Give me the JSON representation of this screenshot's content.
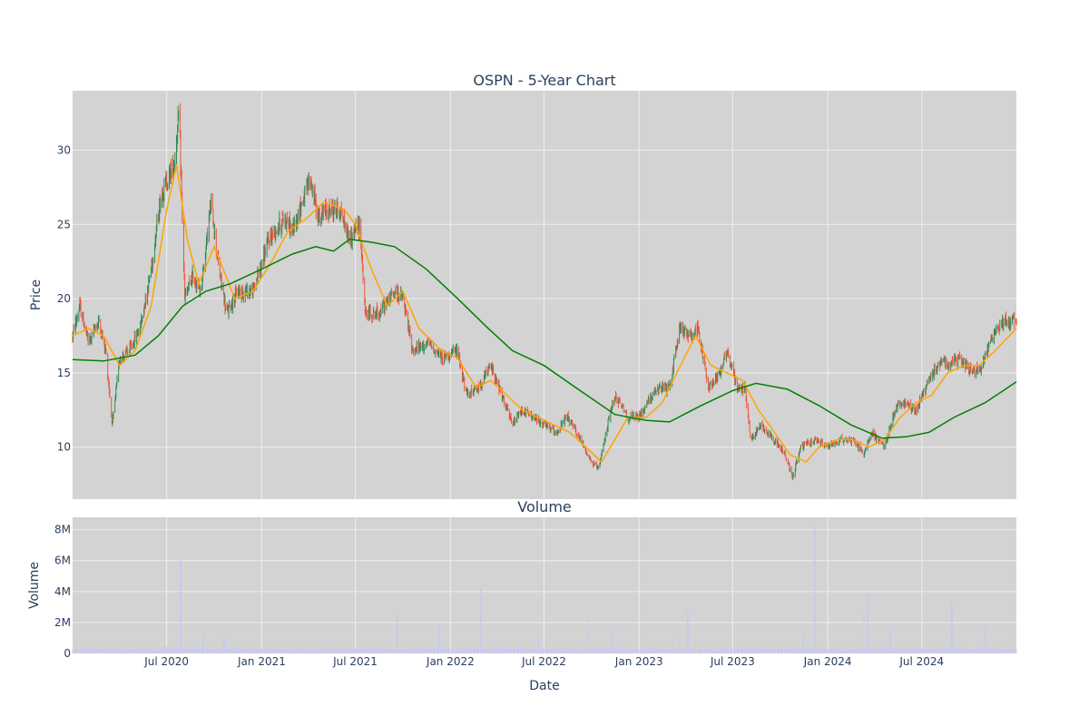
{
  "colors": {
    "plot_bg": "#d3d3d3",
    "grid": "#eeeeee",
    "text": "#2a3f5f",
    "increasing": "#2e8b57",
    "decreasing": "#ef553b",
    "ma_short": "#ffa500",
    "ma_long": "#008000",
    "volume": "#c8c8f0"
  },
  "chart_data": [
    {
      "type": "candlestick",
      "title": "OSPN - 5-Year Chart",
      "xlabel": "",
      "ylabel": "Price",
      "x_range": [
        "2020-01-01",
        "2024-12-31"
      ],
      "ylim": [
        6.5,
        34
      ],
      "y_ticks": [
        10,
        15,
        20,
        25,
        30
      ],
      "x_ticks": [
        {
          "date": "2020-07-01",
          "label": "Jul 2020"
        },
        {
          "date": "2021-01-01",
          "label": "Jan 2021"
        },
        {
          "date": "2021-07-01",
          "label": "Jul 2021"
        },
        {
          "date": "2022-01-01",
          "label": "Jan 2022"
        },
        {
          "date": "2022-07-01",
          "label": "Jul 2022"
        },
        {
          "date": "2023-01-01",
          "label": "Jan 2023"
        },
        {
          "date": "2023-07-01",
          "label": "Jul 2023"
        },
        {
          "date": "2024-01-01",
          "label": "Jan 2024"
        },
        {
          "date": "2024-07-01",
          "label": "Jul 2024"
        }
      ],
      "grid": true,
      "price_path": [
        [
          "2020-01-01",
          17.5
        ],
        [
          "2020-01-15",
          19.5
        ],
        [
          "2020-02-01",
          17.0
        ],
        [
          "2020-02-20",
          18.5
        ],
        [
          "2020-03-05",
          16.5
        ],
        [
          "2020-03-18",
          11.5
        ],
        [
          "2020-04-01",
          16.0
        ],
        [
          "2020-04-20",
          16.5
        ],
        [
          "2020-05-10",
          18.0
        ],
        [
          "2020-06-01",
          22.0
        ],
        [
          "2020-06-20",
          27.0
        ],
        [
          "2020-07-15",
          29.0
        ],
        [
          "2020-07-25",
          32.5
        ],
        [
          "2020-08-05",
          20.0
        ],
        [
          "2020-08-20",
          21.5
        ],
        [
          "2020-09-05",
          20.5
        ],
        [
          "2020-09-25",
          26.5
        ],
        [
          "2020-10-10",
          22.0
        ],
        [
          "2020-10-25",
          19.0
        ],
        [
          "2020-11-15",
          20.5
        ],
        [
          "2020-12-15",
          20.5
        ],
        [
          "2021-01-15",
          24.0
        ],
        [
          "2021-02-15",
          25.5
        ],
        [
          "2021-03-01",
          24.5
        ],
        [
          "2021-03-20",
          26.5
        ],
        [
          "2021-04-05",
          28.0
        ],
        [
          "2021-04-20",
          25.5
        ],
        [
          "2021-05-10",
          26.0
        ],
        [
          "2021-06-01",
          26.0
        ],
        [
          "2021-06-20",
          24.0
        ],
        [
          "2021-07-10",
          25.0
        ],
        [
          "2021-07-20",
          19.0
        ],
        [
          "2021-08-15",
          19.0
        ],
        [
          "2021-09-15",
          20.5
        ],
        [
          "2021-10-01",
          20.0
        ],
        [
          "2021-10-20",
          16.5
        ],
        [
          "2021-11-20",
          17.0
        ],
        [
          "2021-12-15",
          16.0
        ],
        [
          "2022-01-15",
          16.5
        ],
        [
          "2022-02-01",
          13.5
        ],
        [
          "2022-02-25",
          14.0
        ],
        [
          "2022-03-20",
          15.5
        ],
        [
          "2022-04-10",
          13.5
        ],
        [
          "2022-05-01",
          11.5
        ],
        [
          "2022-05-20",
          12.5
        ],
        [
          "2022-06-10",
          12.0
        ],
        [
          "2022-07-01",
          11.5
        ],
        [
          "2022-07-25",
          11.0
        ],
        [
          "2022-08-15",
          12.0
        ],
        [
          "2022-09-10",
          10.5
        ],
        [
          "2022-10-01",
          9.0
        ],
        [
          "2022-10-15",
          8.5
        ],
        [
          "2022-11-01",
          11.5
        ],
        [
          "2022-11-15",
          13.5
        ],
        [
          "2022-12-10",
          12.0
        ],
        [
          "2023-01-01",
          12.0
        ],
        [
          "2023-01-25",
          13.5
        ],
        [
          "2023-02-15",
          14.0
        ],
        [
          "2023-03-01",
          14.0
        ],
        [
          "2023-03-20",
          18.0
        ],
        [
          "2023-04-10",
          17.5
        ],
        [
          "2023-04-25",
          18.0
        ],
        [
          "2023-05-15",
          14.0
        ],
        [
          "2023-06-05",
          15.0
        ],
        [
          "2023-06-20",
          16.5
        ],
        [
          "2023-07-10",
          14.0
        ],
        [
          "2023-07-25",
          14.0
        ],
        [
          "2023-08-05",
          10.5
        ],
        [
          "2023-08-25",
          11.5
        ],
        [
          "2023-09-20",
          10.5
        ],
        [
          "2023-10-10",
          9.5
        ],
        [
          "2023-10-25",
          8.0
        ],
        [
          "2023-11-10",
          10.0
        ],
        [
          "2023-12-10",
          10.5
        ],
        [
          "2024-01-01",
          10.0
        ],
        [
          "2024-01-25",
          10.5
        ],
        [
          "2024-02-20",
          10.5
        ],
        [
          "2024-03-10",
          9.5
        ],
        [
          "2024-03-25",
          11.0
        ],
        [
          "2024-04-20",
          10.0
        ],
        [
          "2024-05-10",
          12.5
        ],
        [
          "2024-05-25",
          13.0
        ],
        [
          "2024-06-20",
          12.5
        ],
        [
          "2024-07-15",
          14.5
        ],
        [
          "2024-08-10",
          16.0
        ],
        [
          "2024-08-25",
          15.5
        ],
        [
          "2024-09-10",
          16.0
        ],
        [
          "2024-10-10",
          15.0
        ],
        [
          "2024-10-25",
          15.5
        ],
        [
          "2024-11-15",
          17.5
        ],
        [
          "2024-12-05",
          18.5
        ],
        [
          "2024-12-31",
          18.5
        ]
      ],
      "ma_short": {
        "name": "",
        "points": [
          [
            "2020-01-01",
            17.5
          ],
          [
            "2020-02-01",
            18.0
          ],
          [
            "2020-03-01",
            17.5
          ],
          [
            "2020-04-01",
            15.5
          ],
          [
            "2020-05-01",
            16.5
          ],
          [
            "2020-06-01",
            19.5
          ],
          [
            "2020-07-01",
            26.0
          ],
          [
            "2020-07-20",
            29.0
          ],
          [
            "2020-08-10",
            24.0
          ],
          [
            "2020-09-01",
            21.0
          ],
          [
            "2020-10-01",
            23.5
          ],
          [
            "2020-11-10",
            20.0
          ],
          [
            "2020-12-15",
            20.5
          ],
          [
            "2021-01-20",
            22.5
          ],
          [
            "2021-02-20",
            24.5
          ],
          [
            "2021-04-01",
            25.5
          ],
          [
            "2021-05-01",
            26.5
          ],
          [
            "2021-06-10",
            26.0
          ],
          [
            "2021-07-01",
            25.0
          ],
          [
            "2021-08-01",
            22.0
          ],
          [
            "2021-09-01",
            19.5
          ],
          [
            "2021-10-01",
            20.5
          ],
          [
            "2021-11-01",
            18.0
          ],
          [
            "2021-12-15",
            16.5
          ],
          [
            "2022-01-15",
            16.0
          ],
          [
            "2022-02-20",
            14.0
          ],
          [
            "2022-03-20",
            14.5
          ],
          [
            "2022-04-20",
            13.5
          ],
          [
            "2022-05-20",
            12.5
          ],
          [
            "2022-06-20",
            12.0
          ],
          [
            "2022-07-20",
            11.5
          ],
          [
            "2022-08-20",
            11.0
          ],
          [
            "2022-09-20",
            10.0
          ],
          [
            "2022-10-20",
            9.0
          ],
          [
            "2022-11-15",
            10.5
          ],
          [
            "2022-12-10",
            12.0
          ],
          [
            "2023-01-15",
            12.0
          ],
          [
            "2023-02-15",
            13.0
          ],
          [
            "2023-03-15",
            15.0
          ],
          [
            "2023-04-20",
            17.5
          ],
          [
            "2023-05-20",
            15.5
          ],
          [
            "2023-06-20",
            15.0
          ],
          [
            "2023-07-20",
            14.5
          ],
          [
            "2023-08-20",
            12.5
          ],
          [
            "2023-09-20",
            11.0
          ],
          [
            "2023-10-20",
            9.5
          ],
          [
            "2023-11-20",
            9.0
          ],
          [
            "2023-12-15",
            10.0
          ],
          [
            "2024-01-20",
            10.5
          ],
          [
            "2024-02-20",
            10.5
          ],
          [
            "2024-03-20",
            10.0
          ],
          [
            "2024-04-20",
            10.5
          ],
          [
            "2024-05-20",
            12.0
          ],
          [
            "2024-06-20",
            13.0
          ],
          [
            "2024-07-20",
            13.5
          ],
          [
            "2024-08-20",
            15.0
          ],
          [
            "2024-09-20",
            15.5
          ],
          [
            "2024-10-20",
            15.5
          ],
          [
            "2024-11-20",
            16.5
          ],
          [
            "2024-12-31",
            18.0
          ]
        ]
      },
      "ma_long": {
        "name": "",
        "points": [
          [
            "2020-01-01",
            15.9
          ],
          [
            "2020-03-01",
            15.8
          ],
          [
            "2020-05-01",
            16.2
          ],
          [
            "2020-06-15",
            17.5
          ],
          [
            "2020-08-01",
            19.5
          ],
          [
            "2020-09-15",
            20.5
          ],
          [
            "2020-11-01",
            21.0
          ],
          [
            "2021-01-01",
            22.0
          ],
          [
            "2021-03-01",
            23.0
          ],
          [
            "2021-04-15",
            23.5
          ],
          [
            "2021-05-20",
            23.2
          ],
          [
            "2021-06-20",
            24.0
          ],
          [
            "2021-08-01",
            23.8
          ],
          [
            "2021-09-15",
            23.5
          ],
          [
            "2021-11-15",
            22.0
          ],
          [
            "2022-01-15",
            20.0
          ],
          [
            "2022-03-15",
            18.0
          ],
          [
            "2022-05-01",
            16.5
          ],
          [
            "2022-07-01",
            15.5
          ],
          [
            "2022-09-01",
            14.0
          ],
          [
            "2022-11-15",
            12.2
          ],
          [
            "2023-01-15",
            11.8
          ],
          [
            "2023-03-01",
            11.7
          ],
          [
            "2023-05-01",
            12.8
          ],
          [
            "2023-07-01",
            13.8
          ],
          [
            "2023-08-15",
            14.3
          ],
          [
            "2023-10-15",
            13.9
          ],
          [
            "2023-12-15",
            12.8
          ],
          [
            "2024-02-15",
            11.5
          ],
          [
            "2024-04-15",
            10.6
          ],
          [
            "2024-06-01",
            10.7
          ],
          [
            "2024-07-15",
            11.0
          ],
          [
            "2024-09-01",
            12.0
          ],
          [
            "2024-11-01",
            13.0
          ],
          [
            "2024-12-31",
            14.4
          ]
        ]
      }
    },
    {
      "type": "bar",
      "title": "Volume",
      "xlabel": "Date",
      "ylabel": "Volume",
      "ylim": [
        0,
        8800000
      ],
      "y_ticks": [
        {
          "value": 0,
          "label": "0"
        },
        {
          "value": 2000000,
          "label": "2M"
        },
        {
          "value": 4000000,
          "label": "4M"
        },
        {
          "value": 6000000,
          "label": "6M"
        },
        {
          "value": 8000000,
          "label": "8M"
        }
      ],
      "baseline_volume": 300000,
      "spikes": [
        [
          "2020-07-28",
          6000000
        ],
        [
          "2020-09-10",
          1300000
        ],
        [
          "2020-10-20",
          1200000
        ],
        [
          "2021-09-20",
          2500000
        ],
        [
          "2021-12-10",
          1800000
        ],
        [
          "2022-02-28",
          4200000
        ],
        [
          "2022-06-20",
          1100000
        ],
        [
          "2022-09-25",
          2200000
        ],
        [
          "2022-11-10",
          1400000
        ],
        [
          "2023-03-20",
          1100000
        ],
        [
          "2023-04-05",
          2700000
        ],
        [
          "2023-11-15",
          1100000
        ],
        [
          "2023-12-08",
          8300000
        ],
        [
          "2024-03-10",
          2900000
        ],
        [
          "2024-03-18",
          3800000
        ],
        [
          "2024-05-01",
          1600000
        ],
        [
          "2024-08-28",
          3300000
        ],
        [
          "2024-11-01",
          1800000
        ]
      ]
    }
  ]
}
